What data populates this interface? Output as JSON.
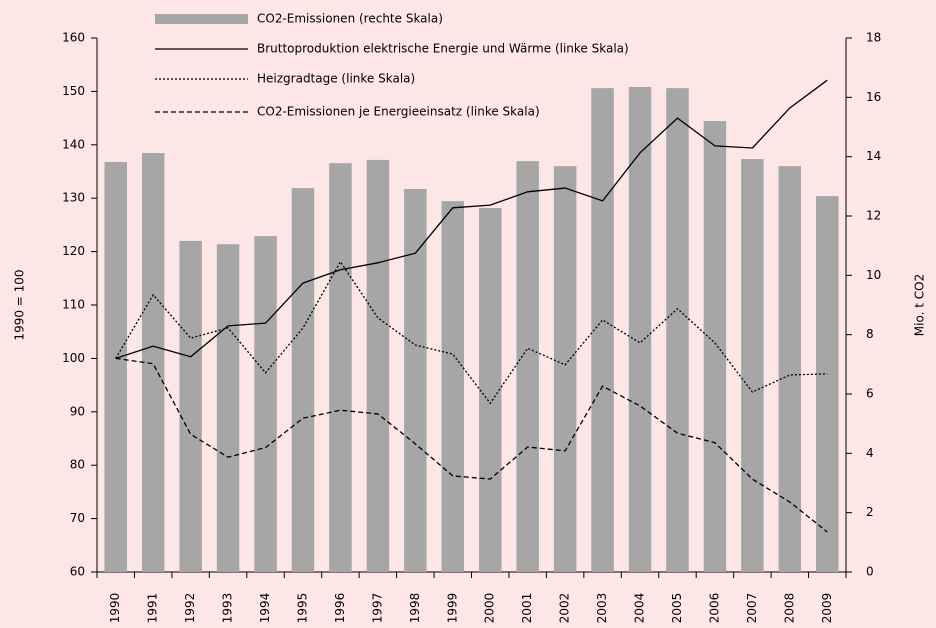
{
  "chart_data": {
    "type": "bar",
    "ylabel": "1990 = 100",
    "y2label": "Mio. t CO2",
    "categories": [
      "1990",
      "1991",
      "1992",
      "1993",
      "1994",
      "1995",
      "1996",
      "1997",
      "1998",
      "1999",
      "2000",
      "2001",
      "2002",
      "2003",
      "2004",
      "2005",
      "2006",
      "2007",
      "2008",
      "2009"
    ],
    "series": [
      {
        "name": "CO2-Emissionen (rechte Skala)",
        "type": "bar",
        "axis": "y2",
        "color": "#a6a6a6",
        "values": [
          13.82,
          14.12,
          11.16,
          11.05,
          11.32,
          12.94,
          13.78,
          13.89,
          12.91,
          12.5,
          12.27,
          13.85,
          13.68,
          16.31,
          16.35,
          16.31,
          15.2,
          13.92,
          13.68,
          12.67
        ]
      },
      {
        "name": "Bruttoproduktion elektrische Energie und Wärme (linke Skala)",
        "type": "line",
        "dash": "solid",
        "color": "#000000",
        "values": [
          100,
          102.3,
          100.3,
          106.1,
          106.6,
          114.1,
          116.6,
          117.9,
          119.7,
          128.2,
          128.7,
          131.2,
          131.9,
          129.5,
          138.5,
          145,
          139.8,
          139.4,
          146.9,
          152.1
        ]
      },
      {
        "name": "Heizgradtage (linke Skala)",
        "type": "line",
        "dash": "dotted",
        "color": "#000000",
        "values": [
          100,
          111.9,
          103.8,
          105.7,
          97.3,
          105.7,
          118.1,
          107.6,
          102.5,
          100.8,
          91.6,
          101.9,
          98.8,
          107.2,
          102.9,
          109.3,
          102.9,
          93.7,
          96.9,
          97.1
        ]
      },
      {
        "name": "CO2-Emissionen je Energieeinsatz (linke Skala)",
        "type": "line",
        "dash": "dashed",
        "color": "#000000",
        "values": [
          100,
          99,
          85.8,
          81.5,
          83.3,
          88.8,
          90.3,
          89.6,
          84,
          78,
          77.4,
          83.4,
          82.7,
          94.8,
          91.1,
          86,
          84.2,
          77.4,
          73.1,
          67.5
        ]
      }
    ],
    "ylim": [
      60,
      160
    ],
    "yticks": [
      60,
      70,
      80,
      90,
      100,
      110,
      120,
      130,
      140,
      150,
      160
    ],
    "y2lim": [
      0,
      18
    ],
    "y2ticks": [
      0,
      2,
      4,
      6,
      8,
      10,
      12,
      14,
      16,
      18
    ],
    "grid": false,
    "legend": "top"
  }
}
